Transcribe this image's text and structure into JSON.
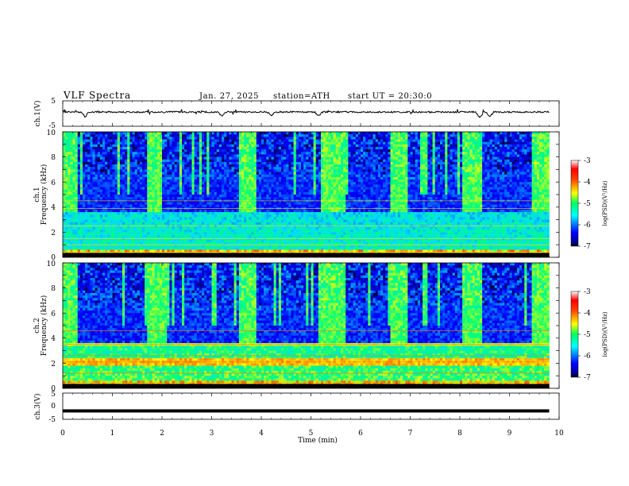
{
  "header": {
    "title": "VLF  Spectra",
    "date": "Jan. 27, 2025",
    "station": "station=ATH",
    "start_ut": "start  UT  =   20:30:0"
  },
  "chart_data": [
    {
      "type": "line",
      "name": "ch1",
      "ylabel": "ch.1(V)",
      "ylim": [
        -5,
        5
      ],
      "yticks": [
        "5",
        "-5"
      ],
      "x_range_min": [
        0,
        9.8
      ],
      "waveform": {
        "base": 0.6,
        "noise": 0.6,
        "dips": [
          {
            "t": 0.45,
            "v": -1.2
          },
          {
            "t": 3.2,
            "v": -1.0
          },
          {
            "t": 4.2,
            "v": -0.9
          },
          {
            "t": 5.15,
            "v": -1.0
          },
          {
            "t": 8.4,
            "v": -1.6
          },
          {
            "t": 8.6,
            "v": -1.3
          }
        ]
      }
    },
    {
      "type": "heatmap",
      "name": "ch1-spectrogram",
      "ylabel_top": "ch.1",
      "ylabel": "Frequency (kHz)",
      "ylim": [
        0,
        10
      ],
      "yticks": [
        "0",
        "2",
        "4",
        "6",
        "8",
        "10"
      ],
      "bright_blocks_min": [
        [
          0.0,
          0.3
        ],
        [
          1.7,
          2.0
        ],
        [
          3.55,
          3.9
        ],
        [
          5.2,
          5.7
        ],
        [
          6.6,
          6.95
        ],
        [
          8.05,
          8.45
        ],
        [
          9.45,
          9.8
        ]
      ],
      "colorbar": {
        "label": "log(PSD)(V²/Hz)",
        "range": [
          -7,
          -3
        ],
        "ticks": [
          "-3",
          "-4",
          "-5",
          "-6",
          "-7"
        ]
      }
    },
    {
      "type": "heatmap",
      "name": "ch2-spectrogram",
      "ylabel_top": "ch.2",
      "ylabel": "Frequency (kHz)",
      "ylim": [
        0,
        10
      ],
      "yticks": [
        "0",
        "2",
        "4",
        "6",
        "8",
        "10"
      ],
      "bright_blocks_min": [
        [
          0.0,
          0.3
        ],
        [
          1.7,
          2.1
        ],
        [
          3.55,
          3.9
        ],
        [
          5.15,
          5.7
        ],
        [
          6.6,
          6.95
        ],
        [
          8.05,
          8.45
        ],
        [
          9.45,
          9.8
        ]
      ],
      "colorbar": {
        "label": "log(PSD)(V²/Hz)",
        "range": [
          -7,
          -3
        ],
        "ticks": [
          "-3",
          "-4",
          "-5",
          "-6",
          "-7"
        ]
      }
    },
    {
      "type": "line",
      "name": "ch3",
      "ylabel": "ch.3(V)",
      "ylim": [
        -5,
        5
      ],
      "yticks": [
        "5",
        "0",
        "-5"
      ],
      "x_range_min": [
        0,
        9.8
      ],
      "constant_value": -1.8,
      "xlabel": "Time  (min)",
      "xlim": [
        0,
        10
      ],
      "xticks": [
        "0",
        "1",
        "2",
        "3",
        "4",
        "5",
        "6",
        "7",
        "8",
        "9",
        "10"
      ]
    }
  ]
}
